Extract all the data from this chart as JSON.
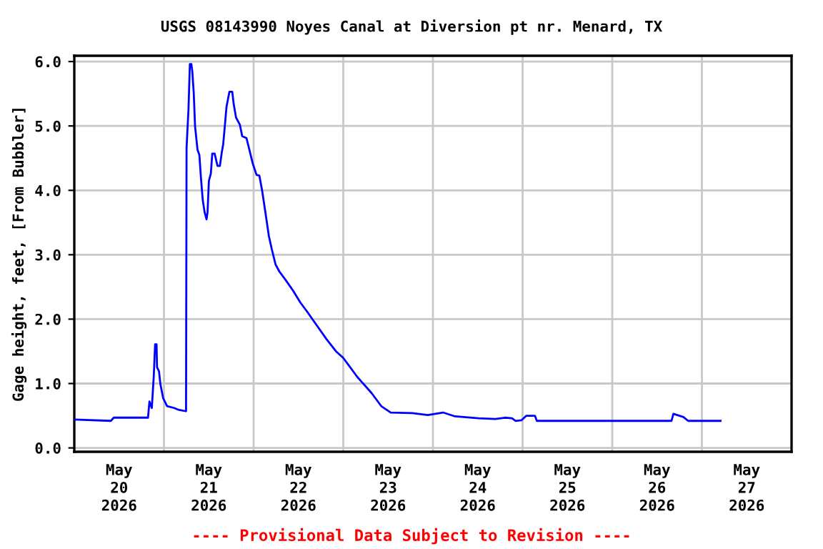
{
  "chart_data": {
    "type": "line",
    "title": "USGS 08143990 Noyes Canal at Diversion pt nr. Menard, TX",
    "ylabel": "Gage height, feet, [From Bubbler]",
    "annotations": [
      "---- Provisional Data Subject to Revision ----"
    ],
    "xlim": [
      "2026-05-20T00:00",
      "2026-05-28T00:00"
    ],
    "ylim": [
      -0.06,
      6.09
    ],
    "yticks": [
      {
        "value": 0,
        "label": "0.0"
      },
      {
        "value": 1,
        "label": "1.0"
      },
      {
        "value": 2,
        "label": "2.0"
      },
      {
        "value": 3,
        "label": "3.0"
      },
      {
        "value": 4,
        "label": "4.0"
      },
      {
        "value": 5,
        "label": "5.0"
      },
      {
        "value": 6,
        "label": "6.0"
      }
    ],
    "xticks": [
      {
        "value": "2026-05-21T00:00",
        "label": null
      },
      {
        "value": "2026-05-22T00:00",
        "label": null
      },
      {
        "value": "2026-05-23T00:00",
        "label": null
      },
      {
        "value": "2026-05-24T00:00",
        "label": null
      },
      {
        "value": "2026-05-25T00:00",
        "label": null
      },
      {
        "value": "2026-05-26T00:00",
        "label": null
      },
      {
        "value": "2026-05-27T00:00",
        "label": null
      },
      {
        "value": "2026-05-20T12:00",
        "label": "May\n20\n2026"
      },
      {
        "value": "2026-05-21T12:00",
        "label": "May\n21\n2026"
      },
      {
        "value": "2026-05-22T12:00",
        "label": "May\n22\n2026"
      },
      {
        "value": "2026-05-23T12:00",
        "label": "May\n23\n2026"
      },
      {
        "value": "2026-05-24T12:00",
        "label": "May\n24\n2026"
      },
      {
        "value": "2026-05-25T12:00",
        "label": "May\n25\n2026"
      },
      {
        "value": "2026-05-26T12:00",
        "label": "May\n26\n2026"
      },
      {
        "value": "2026-05-27T12:00",
        "label": "May\n27\n2026"
      }
    ],
    "grid": true,
    "legend": false,
    "marker": "none",
    "line_style": "solid",
    "series": [
      {
        "color": "#0000ff",
        "x": [
          "2026-05-20T00:00",
          "2026-05-20T09:48",
          "2026-05-20T10:34",
          "2026-05-20T19:44",
          "2026-05-20T20:07",
          "2026-05-20T20:45",
          "2026-05-20T21:16",
          "2026-05-20T21:38",
          "2026-05-20T22:01",
          "2026-05-20T22:09",
          "2026-05-20T22:40",
          "2026-05-20T23:03",
          "2026-05-20T23:48",
          "2026-05-21T00:50",
          "2026-05-21T02:44",
          "2026-05-21T04:01",
          "2026-05-21T05:55",
          "2026-05-21T06:03",
          "2026-05-21T06:34",
          "2026-05-21T06:56",
          "2026-05-21T07:20",
          "2026-05-21T07:35",
          "2026-05-21T07:58",
          "2026-05-21T08:20",
          "2026-05-21T08:59",
          "2026-05-21T09:29",
          "2026-05-21T09:52",
          "2026-05-21T10:23",
          "2026-05-21T10:53",
          "2026-05-21T11:24",
          "2026-05-21T11:40",
          "2026-05-21T12:02",
          "2026-05-21T12:33",
          "2026-05-21T12:56",
          "2026-05-21T13:34",
          "2026-05-21T14:20",
          "2026-05-21T14:58",
          "2026-05-21T15:29",
          "2026-05-21T15:52",
          "2026-05-21T16:14",
          "2026-05-21T16:45",
          "2026-05-21T17:31",
          "2026-05-21T18:17",
          "2026-05-21T18:40",
          "2026-05-21T19:18",
          "2026-05-21T20:19",
          "2026-05-21T20:57",
          "2026-05-21T22:06",
          "2026-05-21T22:52",
          "2026-05-21T23:45",
          "2026-05-22T00:47",
          "2026-05-22T01:32",
          "2026-05-22T02:18",
          "2026-05-22T03:12",
          "2026-05-22T04:05",
          "2026-05-22T04:51",
          "2026-05-22T05:52",
          "2026-05-22T06:53",
          "2026-05-22T08:40",
          "2026-05-22T10:35",
          "2026-05-22T12:29",
          "2026-05-22T14:24",
          "2026-05-22T16:57",
          "2026-05-22T19:30",
          "2026-05-22T22:03",
          "2026-05-22T23:58",
          "2026-05-23T03:47",
          "2026-05-23T07:36",
          "2026-05-23T10:09",
          "2026-05-23T12:42",
          "2026-05-23T18:26",
          "2026-05-23T22:38",
          "2026-05-24T02:43",
          "2026-05-24T05:54",
          "2026-05-24T12:16",
          "2026-05-24T16:44",
          "2026-05-24T19:16",
          "2026-05-24T21:11",
          "2026-05-24T22:05",
          "2026-05-24T23:44",
          "2026-05-25T01:01",
          "2026-05-25T03:18",
          "2026-05-25T03:49",
          "2026-05-26T15:52",
          "2026-05-26T16:22",
          "2026-05-26T19:03",
          "2026-05-26T20:19",
          "2026-05-27T04:59"
        ],
        "values": [
          0.44,
          0.42,
          0.47,
          0.47,
          0.72,
          0.62,
          1.11,
          1.61,
          1.61,
          1.25,
          1.19,
          0.99,
          0.77,
          0.65,
          0.62,
          0.59,
          0.57,
          4.66,
          5.26,
          5.96,
          5.96,
          5.85,
          5.52,
          4.99,
          4.63,
          4.55,
          4.22,
          3.85,
          3.66,
          3.55,
          3.66,
          4.15,
          4.26,
          4.57,
          4.57,
          4.38,
          4.38,
          4.59,
          4.72,
          4.96,
          5.3,
          5.53,
          5.53,
          5.34,
          5.13,
          5.02,
          4.84,
          4.81,
          4.63,
          4.42,
          4.24,
          4.23,
          3.99,
          3.64,
          3.29,
          3.09,
          2.85,
          2.74,
          2.6,
          2.44,
          2.26,
          2.11,
          1.9,
          1.69,
          1.5,
          1.4,
          1.1,
          0.85,
          0.65,
          0.55,
          0.54,
          0.51,
          0.55,
          0.49,
          0.46,
          0.45,
          0.47,
          0.46,
          0.42,
          0.43,
          0.5,
          0.5,
          0.42,
          0.42,
          0.53,
          0.48,
          0.42,
          0.42
        ]
      }
    ]
  }
}
